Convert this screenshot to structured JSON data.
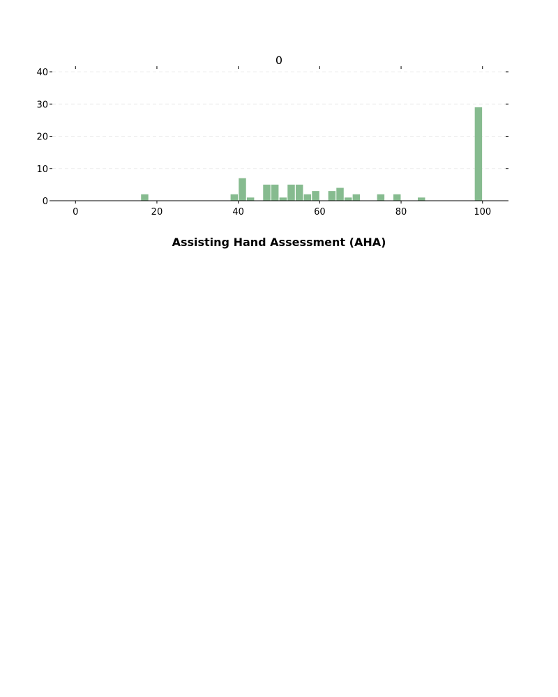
{
  "chart_data": {
    "type": "bar",
    "title": "0",
    "xlabel": "Assisting Hand Assessment (AHA)",
    "ylabel": "",
    "xlim": [
      -5.7,
      105.7
    ],
    "ylim": [
      0,
      40
    ],
    "x_ticks": [
      0,
      20,
      40,
      60,
      80,
      100
    ],
    "y_ticks": [
      0,
      10,
      20,
      30,
      40
    ],
    "grid": "horizontal dashed",
    "bar_color": "#86bb8f",
    "bin_width": 2,
    "x": [
      17,
      39,
      41,
      43,
      47,
      49,
      51,
      53,
      55,
      57,
      59,
      63,
      65,
      67,
      69,
      75,
      79,
      85,
      99
    ],
    "values": [
      2,
      2,
      7,
      1,
      5,
      5,
      1,
      5,
      5,
      2,
      3,
      3,
      4,
      1,
      2,
      2,
      2,
      1,
      29
    ]
  }
}
